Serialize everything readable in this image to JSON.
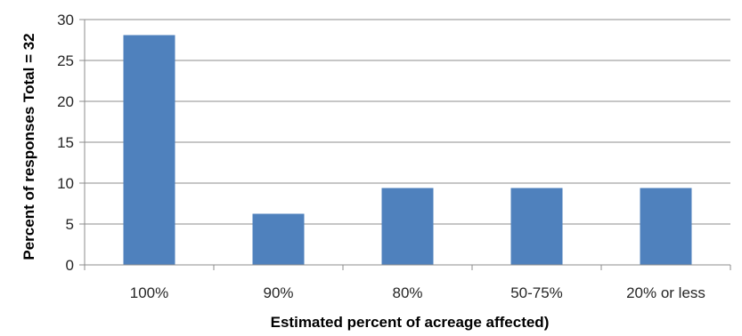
{
  "chart_data": {
    "type": "bar",
    "categories": [
      "100%",
      "90%",
      "80%",
      "50-75%",
      "20% or less"
    ],
    "values": [
      28.1,
      6.25,
      9.4,
      9.4,
      9.4
    ],
    "xlabel": "Estimated percent of acreage affected)",
    "ylabel": "Percent of responses   Total = 32",
    "ylim": [
      0,
      30
    ],
    "yticks": [
      "0",
      "5",
      "10",
      "15",
      "20",
      "25",
      "30"
    ],
    "grid": true,
    "legend": "none",
    "bar_color": "#4f81bd"
  }
}
